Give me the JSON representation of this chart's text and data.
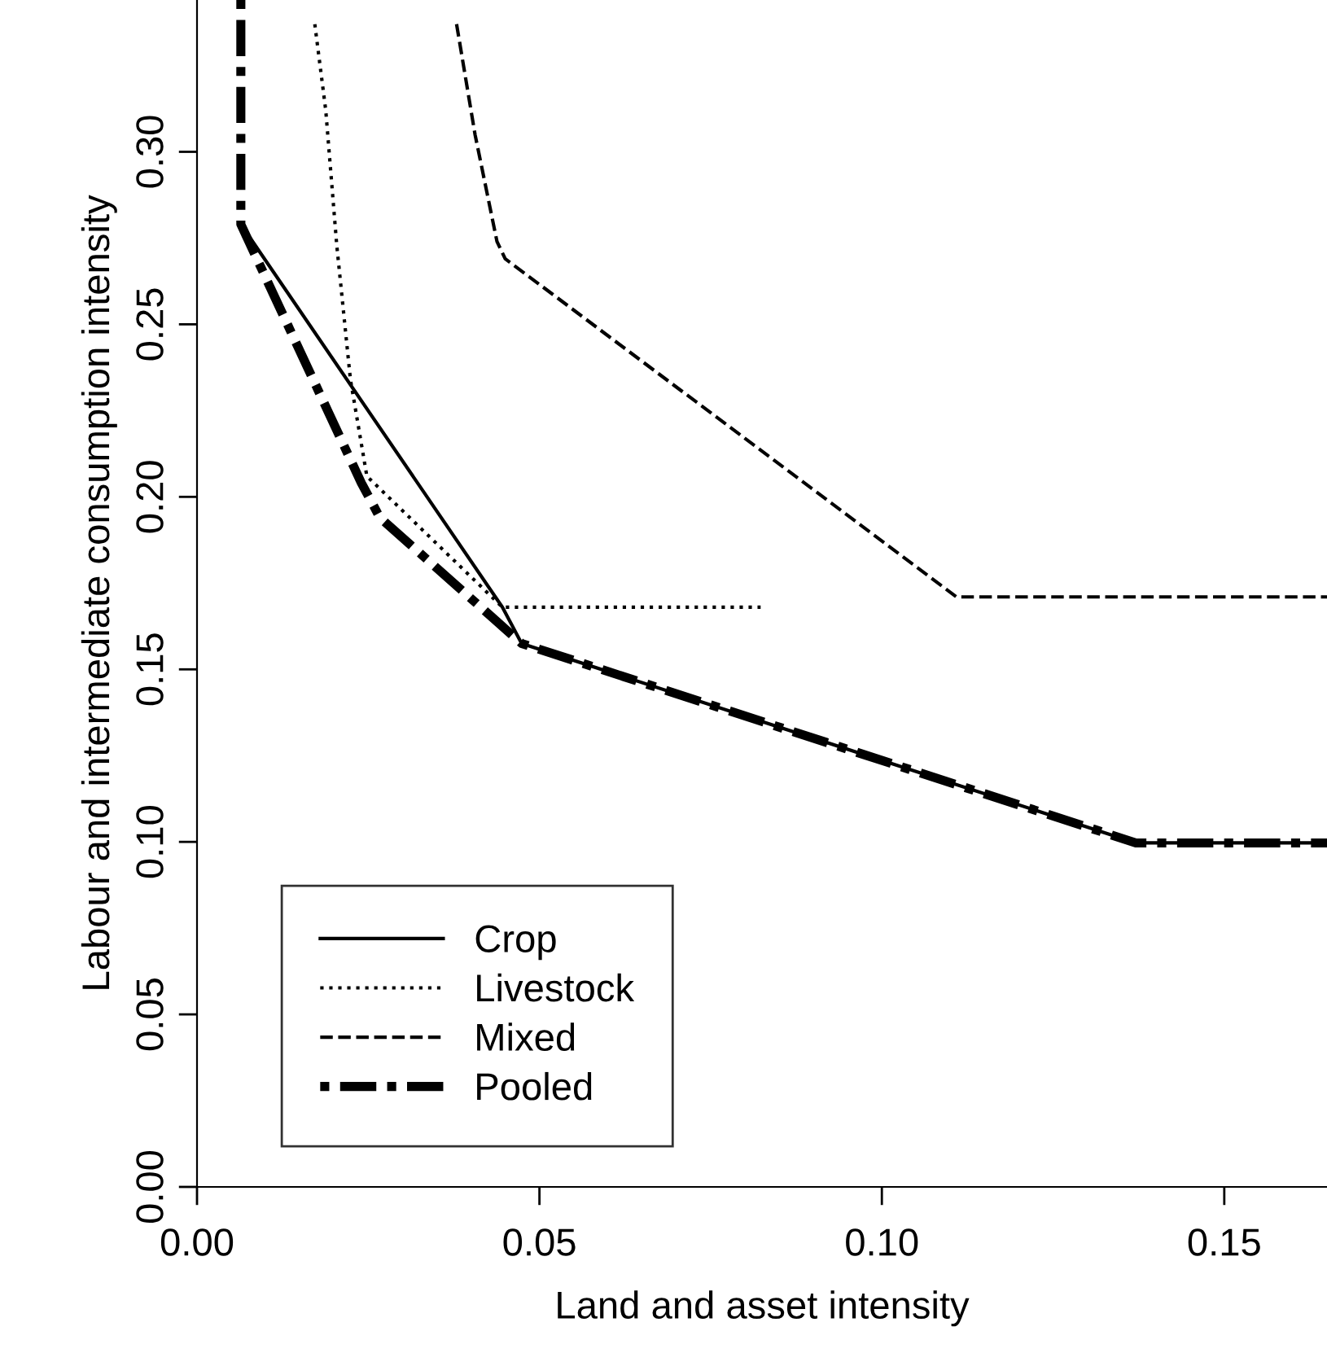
{
  "chart_data": {
    "type": "line",
    "xlabel": "Land and asset intensity",
    "ylabel": "Labour and intermediate consumption intensity",
    "xlim": [
      0,
      0.165
    ],
    "ylim": [
      0,
      0.344
    ],
    "xticks": [
      {
        "value": 0,
        "label": "0.00"
      },
      {
        "value": 0.05,
        "label": "0.05"
      },
      {
        "value": 0.1,
        "label": "0.10"
      },
      {
        "value": 0.15,
        "label": "0.15"
      }
    ],
    "yticks": [
      {
        "value": 0,
        "label": "0.00"
      },
      {
        "value": 0.05,
        "label": "0.05"
      },
      {
        "value": 0.1,
        "label": "0.10"
      },
      {
        "value": 0.15,
        "label": "0.15"
      },
      {
        "value": 0.2,
        "label": "0.20"
      },
      {
        "value": 0.25,
        "label": "0.25"
      },
      {
        "value": 0.3,
        "label": "0.30"
      }
    ],
    "grid": false,
    "legend": "bottom left",
    "marker": "none",
    "series": [
      {
        "name": "Crop",
        "color": "#000000",
        "line_style": "solid",
        "x": [
          0.0064,
          0.0446,
          0.0474,
          0.1371,
          0.165
        ],
        "values": [
          0.279,
          0.168,
          0.1575,
          0.0997,
          0.0997
        ]
      },
      {
        "name": "Livestock",
        "color": "#000000",
        "line_style": "dotted",
        "x": [
          0.0172,
          0.0188,
          0.0204,
          0.0224,
          0.0248,
          0.0446,
          0.0823
        ],
        "values": [
          0.337,
          0.312,
          0.273,
          0.234,
          0.206,
          0.168,
          0.168
        ]
      },
      {
        "name": "Mixed",
        "color": "#000000",
        "line_style": "dashed",
        "x": [
          0.0379,
          0.0406,
          0.0438,
          0.045,
          0.1109,
          0.165
        ],
        "values": [
          0.337,
          0.305,
          0.274,
          0.269,
          0.171,
          0.171
        ]
      },
      {
        "name": "Pooled",
        "color": "#000000",
        "line_style": "dashdot",
        "x": [
          0.0064,
          0.0064,
          0.024,
          0.0267,
          0.0474,
          0.1371,
          0.165
        ],
        "values": [
          0.344,
          0.279,
          0.204,
          0.194,
          0.1575,
          0.0997,
          0.0997
        ]
      }
    ]
  }
}
